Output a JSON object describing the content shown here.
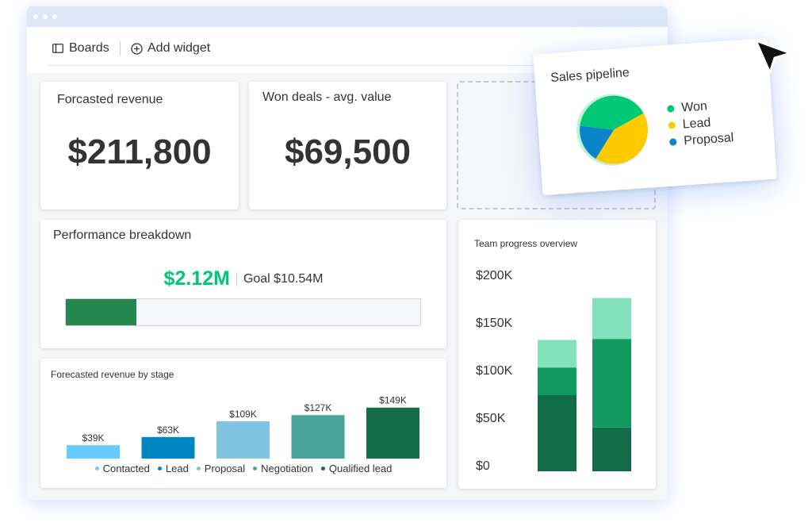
{
  "toolbar": {
    "boards_label": "Boards",
    "add_widget_label": "Add widget",
    "boards_icon": "board-icon",
    "add_icon": "plus-circle-icon"
  },
  "widgets": {
    "forecasted_revenue": {
      "title": "Forcasted revenue",
      "value": "$211,800"
    },
    "won_deals": {
      "title": "Won deals - avg. value",
      "value": "$69,500"
    },
    "performance": {
      "title": "Performance breakdown",
      "value": "$2.12M",
      "goal": "Goal $10.54M",
      "progress_fraction": 0.2,
      "fill_color": "#258750"
    }
  },
  "chart_data": [
    {
      "type": "bar",
      "title": "Forecasted revenue by stage",
      "categories": [
        "Contacted",
        "Lead",
        "Proposal",
        "Negotiation",
        "Qualified lead"
      ],
      "values": [
        39,
        63,
        109,
        127,
        149
      ],
      "data_labels": [
        "$39K",
        "$63K",
        "$109K",
        "$127K",
        "$149K"
      ],
      "colors": [
        "#66ccff",
        "#0086c0",
        "#7fc4e3",
        "#48a59c",
        "#146e47"
      ],
      "ylim": [
        0,
        160
      ],
      "legend": "bottom"
    },
    {
      "type": "bar",
      "stacked": true,
      "title": "Team progress overview",
      "categories": [
        "",
        ""
      ],
      "series": [
        {
          "values": [
            80,
            46
          ],
          "color": "#126b49"
        },
        {
          "values": [
            29,
            93
          ],
          "color": "#12995f"
        },
        {
          "values": [
            29,
            43
          ],
          "color": "#83e2bb"
        }
      ],
      "y_ticks": [
        "$200K",
        "$150K",
        "$100K",
        "$50K",
        "$0"
      ],
      "ylim": [
        0,
        200
      ],
      "grid": false
    },
    {
      "type": "pie",
      "title": "Sales pipeline",
      "labels": [
        "Won",
        "Lead",
        "Proposal"
      ],
      "values": [
        40,
        42,
        18
      ],
      "colors": [
        "#00c875",
        "#ffcb00",
        "#0a85c8"
      ],
      "legend": "right"
    }
  ],
  "colors": {
    "accent_green": "#00c875",
    "window_bar": "#dde7f8"
  },
  "cursor_icon": "mouse-pointer-icon"
}
